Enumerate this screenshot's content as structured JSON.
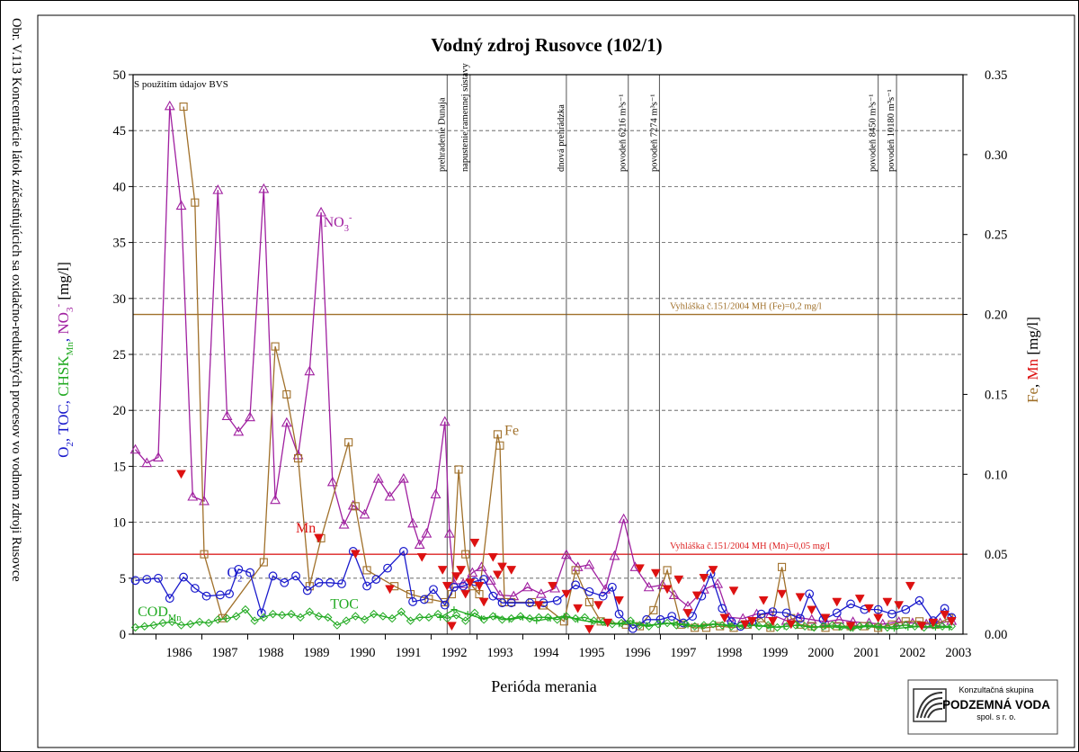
{
  "figure": {
    "caption": "Obr. V.113 Koncentrácie látok zúčastňujúcich sa oxidačno-redukčných procesov vo vodnom zdroji Rusovce",
    "source_note": "S použitím údajov BVS"
  },
  "logo": {
    "line1": "Konzultačná skupina",
    "line2": "PODZEMNÁ VODA",
    "line3": "spol. s r. o."
  },
  "chart_data": {
    "type": "line",
    "title": "Vodný zdroj Rusovce (102/1)",
    "xlabel": "Perióda merania",
    "ylabel_left_parts": [
      {
        "text": "O",
        "color": "#1a1acc"
      },
      {
        "text": "2",
        "color": "#1a1acc",
        "sub": true
      },
      {
        "text": ", TOC, ",
        "color": "#1a1acc"
      },
      {
        "text": "CHSK",
        "color": "#22aa22"
      },
      {
        "text": "Mn",
        "color": "#22aa22",
        "sub": true
      },
      {
        "text": ", ",
        "color": "#1a1acc"
      },
      {
        "text": "NO",
        "color": "#a020a0"
      },
      {
        "text": "3",
        "color": "#a020a0",
        "sub": true
      },
      {
        "text": "-",
        "color": "#a020a0",
        "sup": true
      },
      {
        "text": " [mg/l]",
        "color": "#000000"
      }
    ],
    "ylabel_right_parts": [
      {
        "text": "Fe",
        "color": "#a0702a"
      },
      {
        "text": ", ",
        "color": "#000000"
      },
      {
        "text": "Mn",
        "color": "#dd1111"
      },
      {
        "text": " [mg/l]",
        "color": "#000000"
      }
    ],
    "xlim": [
      1985.5,
      2003.6
    ],
    "ylim_left": [
      0,
      50
    ],
    "ylim_right": [
      0,
      0.35
    ],
    "x_ticks": [
      "1986",
      "1987",
      "1988",
      "1989",
      "1990",
      "1991",
      "1992",
      "1993",
      "1994",
      "1995",
      "1996",
      "1997",
      "1998",
      "1999",
      "2000",
      "2001",
      "2002",
      "2003"
    ],
    "y_left_ticks": [
      "0",
      "5",
      "10",
      "15",
      "20",
      "25",
      "30",
      "35",
      "40",
      "45",
      "50"
    ],
    "y_right_ticks": [
      "0.00",
      "0.05",
      "0.10",
      "0.15",
      "0.20",
      "0.25",
      "0.30",
      "0.35"
    ],
    "grid": true,
    "limit_lines": [
      {
        "label": "Vyhláška č.151/2004 MH (Fe)=0,2 mg/l",
        "axis": "right",
        "value": 0.2,
        "color": "#a0702a"
      },
      {
        "label": "Vyhláška č.151/2004 MH (Mn)=0,05 mg/l",
        "axis": "right",
        "value": 0.05,
        "color": "#dd2222"
      }
    ],
    "events": [
      {
        "x": 1992.35,
        "label": "prehradenie Dunaja"
      },
      {
        "x": 1992.85,
        "label": "napustenie ramennej sústavy"
      },
      {
        "x": 1994.95,
        "label": "dnová prehrádzka"
      },
      {
        "x": 1996.3,
        "label": "povodeň 6216 m³s⁻¹"
      },
      {
        "x": 1996.98,
        "label": "povodeň 7274 m³s⁻¹"
      },
      {
        "x": 2001.75,
        "label": "povodeň 8450 m³s⁻¹"
      },
      {
        "x": 2002.15,
        "label": "povodeň 10180 m³s⁻¹"
      }
    ],
    "series_labels": [
      {
        "text": "NO",
        "sub": "3",
        "sup": "-",
        "x": 1989.65,
        "y": 36.4,
        "color": "#a020a0"
      },
      {
        "text": "Fe",
        "x": 1993.6,
        "y": 17.8,
        "color": "#a0702a"
      },
      {
        "text": "Mn",
        "x": 1989.05,
        "y": 9.1,
        "color": "#dd1111"
      },
      {
        "text": "O",
        "sub": "2",
        "x": 1987.55,
        "y": 5.1,
        "color": "#1a1acc"
      },
      {
        "text": "TOC",
        "x": 1989.8,
        "y": 2.3,
        "color": "#22aa22"
      },
      {
        "text": "COD",
        "sub": "Mn",
        "x": 1985.6,
        "y": 1.6,
        "color": "#22aa22"
      }
    ],
    "series": [
      {
        "name": "NO3-",
        "axis": "left",
        "color": "#a020a0",
        "marker": "triangle",
        "x": [
          1985.55,
          1985.8,
          1986.05,
          1986.3,
          1986.55,
          1986.8,
          1987.05,
          1987.35,
          1987.55,
          1987.8,
          1988.05,
          1988.35,
          1988.6,
          1988.85,
          1989.1,
          1989.35,
          1989.6,
          1989.85,
          1990.1,
          1990.3,
          1990.55,
          1990.85,
          1991.1,
          1991.4,
          1991.6,
          1991.75,
          1991.9,
          1992.1,
          1992.3,
          1992.4,
          1992.5,
          1992.7,
          1992.9,
          1993.1,
          1993.3,
          1993.5,
          1993.8,
          1994.1,
          1994.4,
          1994.7,
          1994.95,
          1995.2,
          1995.45,
          1995.8,
          1996.0,
          1996.2,
          1996.45,
          1996.75,
          1997.05,
          1997.3,
          1997.6,
          1997.95,
          1998.25,
          1998.5,
          1998.8,
          1999.1,
          1999.4,
          1999.75,
          2000.0,
          2000.3,
          2000.6,
          2000.9,
          2001.2,
          2001.55,
          2001.85,
          2002.2,
          2002.5,
          2002.8,
          2003.1,
          2003.35
        ],
        "values": [
          16.5,
          15.3,
          15.8,
          47.2,
          38.3,
          12.3,
          11.9,
          39.7,
          19.5,
          18.1,
          19.4,
          39.8,
          12.0,
          18.9,
          16.0,
          23.5,
          37.7,
          13.6,
          9.8,
          11.5,
          10.7,
          13.9,
          12.3,
          13.9,
          9.9,
          8.0,
          9.0,
          12.5,
          19.0,
          9.0,
          4.5,
          4.5,
          5.5,
          6.0,
          4.8,
          3.5,
          3.4,
          4.2,
          3.6,
          4.1,
          7.1,
          6.0,
          6.2,
          4.0,
          7.0,
          10.3,
          6.0,
          4.2,
          4.4,
          3.5,
          2.5,
          4.0,
          4.5,
          1.5,
          1.4,
          1.8,
          1.8,
          1.2,
          1.5,
          1.3,
          1.1,
          1.3,
          1.1,
          1.0,
          0.9,
          1.1,
          1.0,
          0.9,
          1.0,
          1.2
        ]
      },
      {
        "name": "Fe",
        "axis": "right",
        "color": "#a0702a",
        "marker": "square",
        "x": [
          1986.6,
          1986.85,
          1987.05,
          1987.45,
          1988.35,
          1988.6,
          1988.85,
          1989.1,
          1989.35,
          1989.6,
          1990.2,
          1990.35,
          1990.6,
          1991.2,
          1991.55,
          1991.95,
          1992.3,
          1992.45,
          1992.6,
          1992.75,
          1992.9,
          1993.05,
          1993.45,
          1993.5,
          1993.6,
          1993.75,
          1994.2,
          1994.45,
          1994.9,
          1995.15,
          1995.45,
          1995.7,
          1996.25,
          1996.55,
          1996.85,
          1997.15,
          1997.45,
          1997.75,
          1998.0,
          1998.3,
          1998.6,
          1998.9,
          1999.2,
          1999.4,
          1999.65,
          1999.85,
          2000.05,
          2000.3,
          2000.6,
          2000.85,
          2001.15,
          2001.45,
          2001.75,
          2002.05,
          2002.35,
          2002.65,
          2003.0,
          2003.3
        ],
        "values": [
          0.33,
          0.27,
          0.05,
          0.01,
          0.045,
          0.18,
          0.15,
          0.11,
          0.03,
          0.06,
          0.12,
          0.08,
          0.04,
          0.03,
          0.025,
          0.022,
          0.02,
          0.025,
          0.103,
          0.05,
          0.03,
          0.025,
          0.125,
          0.118,
          0.02,
          0.02,
          0.02,
          0.018,
          0.008,
          0.04,
          0.02,
          0.008,
          0.006,
          0.005,
          0.015,
          0.04,
          0.006,
          0.004,
          0.004,
          0.005,
          0.004,
          0.006,
          0.01,
          0.004,
          0.042,
          0.01,
          0.006,
          0.005,
          0.004,
          0.005,
          0.005,
          0.005,
          0.004,
          0.006,
          0.008,
          0.008,
          0.006,
          0.01
        ]
      },
      {
        "name": "O2",
        "axis": "left",
        "color": "#1a1acc",
        "marker": "circle",
        "x": [
          1985.55,
          1985.8,
          1986.05,
          1986.3,
          1986.6,
          1986.85,
          1987.1,
          1987.4,
          1987.6,
          1987.8,
          1988.05,
          1988.3,
          1988.55,
          1988.8,
          1989.05,
          1989.3,
          1989.55,
          1989.8,
          1990.05,
          1990.3,
          1990.6,
          1990.8,
          1991.05,
          1991.4,
          1991.6,
          1991.85,
          1992.05,
          1992.3,
          1992.5,
          1992.7,
          1992.95,
          1993.15,
          1993.35,
          1993.55,
          1993.75,
          1994.15,
          1994.45,
          1994.75,
          1995.15,
          1995.45,
          1995.75,
          1995.95,
          1996.1,
          1996.4,
          1996.7,
          1997.0,
          1997.25,
          1997.5,
          1997.7,
          1997.9,
          1998.1,
          1998.35,
          1998.55,
          1998.75,
          1999.0,
          1999.2,
          1999.45,
          1999.75,
          2000.05,
          2000.25,
          2000.55,
          2000.85,
          2001.15,
          2001.45,
          2001.75,
          2002.05,
          2002.35,
          2002.65,
          2002.95,
          2003.2,
          2003.35
        ],
        "values": [
          4.8,
          4.9,
          5.0,
          3.2,
          5.1,
          4.1,
          3.4,
          3.5,
          3.6,
          5.8,
          5.5,
          1.9,
          5.2,
          4.6,
          5.2,
          3.9,
          4.6,
          4.6,
          4.5,
          7.4,
          4.3,
          4.9,
          5.9,
          7.4,
          2.9,
          3.1,
          4.0,
          2.6,
          4.2,
          4.3,
          4.7,
          4.9,
          3.4,
          2.8,
          2.8,
          2.8,
          2.8,
          3.0,
          4.4,
          3.8,
          3.4,
          4.2,
          1.8,
          0.5,
          1.3,
          1.3,
          1.6,
          1.0,
          1.6,
          3.4,
          5.4,
          2.3,
          1.1,
          0.7,
          1.1,
          1.8,
          2.0,
          1.9,
          1.4,
          3.6,
          1.3,
          1.9,
          2.7,
          2.2,
          2.2,
          1.8,
          2.2,
          3.0,
          1.2,
          2.3,
          1.5
        ]
      },
      {
        "name": "TOC",
        "axis": "left",
        "color": "#22aa22",
        "marker": "diamond",
        "x": [
          1985.55,
          1985.75,
          1985.95,
          1986.15,
          1986.35,
          1986.55,
          1986.75,
          1986.95,
          1987.15,
          1987.35,
          1987.55,
          1987.75,
          1987.95,
          1988.15,
          1988.35,
          1988.55,
          1988.75,
          1988.95,
          1989.15,
          1989.35,
          1989.55,
          1989.75,
          1989.95,
          1990.15,
          1990.35,
          1990.55,
          1990.75,
          1990.95,
          1991.15,
          1991.35,
          1991.55,
          1991.75,
          1991.95,
          1992.15,
          1992.35,
          1992.55,
          1992.75,
          1992.95,
          1993.15,
          1993.35,
          1993.55,
          1993.75,
          1993.95,
          1994.15,
          1994.35,
          1994.55,
          1994.75,
          1994.95,
          1995.15,
          1995.35,
          1995.55,
          1995.75,
          1995.95,
          1996.15,
          1996.35,
          1996.55,
          1996.75,
          1996.95,
          1997.15,
          1997.35,
          1997.55,
          1997.75,
          1997.95,
          1998.15,
          1998.35,
          1998.55,
          1998.75,
          1998.95,
          1999.15,
          1999.35,
          1999.55,
          1999.75,
          1999.95,
          2000.15,
          2000.35,
          2000.55,
          2000.75,
          2000.95,
          2001.15,
          2001.35,
          2001.55,
          2001.75,
          2001.95,
          2002.15,
          2002.35,
          2002.55,
          2002.75,
          2002.95,
          2003.15,
          2003.35
        ],
        "values": [
          0.6,
          0.7,
          0.8,
          1.0,
          1.1,
          0.8,
          0.9,
          1.1,
          1.0,
          1.3,
          1.4,
          1.6,
          2.2,
          1.2,
          1.5,
          1.8,
          1.7,
          1.8,
          1.5,
          2.0,
          1.6,
          1.5,
          0.8,
          1.2,
          1.6,
          1.3,
          1.8,
          1.6,
          1.4,
          2.0,
          1.2,
          1.5,
          1.5,
          1.8,
          1.4,
          1.7,
          1.2,
          1.9,
          1.3,
          1.6,
          1.3,
          1.4,
          1.6,
          1.4,
          1.5,
          1.5,
          1.3,
          1.6,
          1.4,
          1.5,
          1.2,
          1.1,
          0.9,
          1.0,
          1.2,
          0.8,
          0.7,
          0.9,
          1.0,
          0.8,
          0.9,
          0.7,
          0.8,
          0.9,
          0.8,
          0.7,
          0.8,
          0.9,
          0.7,
          0.8,
          0.6,
          0.7,
          0.8,
          0.7,
          0.6,
          0.7,
          0.8,
          0.7,
          0.6,
          0.7,
          0.8,
          0.7,
          0.6,
          0.7,
          0.8,
          0.7,
          0.6,
          0.8,
          0.7,
          0.7
        ]
      },
      {
        "name": "CODMn",
        "axis": "left",
        "color": "#22aa22",
        "marker": "plus",
        "x": [
          1992.2,
          1992.5,
          1992.8,
          1993.1,
          1993.4,
          1993.7,
          1994.0,
          1994.3,
          1994.6,
          1994.9,
          1995.2,
          1995.5,
          1995.8,
          1996.1,
          1996.4,
          1996.7,
          1997.0,
          1997.3,
          1997.6,
          1997.9,
          1998.2,
          1998.5,
          1998.8,
          1999.1,
          1999.4,
          1999.7,
          2000.0,
          2000.3,
          2000.6,
          2000.9,
          2001.2,
          2001.5,
          2001.8,
          2002.1,
          2002.4,
          2002.7,
          2003.0,
          2003.3
        ],
        "values": [
          1.5,
          2.2,
          1.8,
          1.4,
          1.6,
          1.3,
          1.5,
          1.2,
          1.4,
          1.6,
          1.3,
          1.1,
          1.0,
          0.9,
          1.0,
          0.8,
          0.9,
          1.0,
          0.8,
          0.7,
          0.9,
          0.8,
          0.7,
          0.8,
          0.6,
          0.7,
          0.8,
          0.6,
          0.7,
          0.6,
          0.5,
          0.7,
          0.6,
          0.5,
          0.6,
          0.7,
          0.6,
          0.6
        ]
      },
      {
        "name": "Mn",
        "axis": "right",
        "color": "#dd1111",
        "marker": "triangle-down",
        "x": [
          1986.55,
          1989.55,
          1990.35,
          1991.1,
          1991.8,
          1992.25,
          1992.35,
          1992.45,
          1992.55,
          1992.65,
          1992.75,
          1992.85,
          1992.95,
          1993.05,
          1993.15,
          1993.35,
          1993.45,
          1993.55,
          1993.75,
          1994.35,
          1994.65,
          1994.95,
          1995.2,
          1995.45,
          1995.65,
          1995.85,
          1996.1,
          1996.55,
          1996.9,
          1997.15,
          1997.4,
          1997.6,
          1997.8,
          1997.95,
          1998.15,
          1998.4,
          1998.6,
          1998.85,
          1999.0,
          1999.25,
          1999.45,
          1999.65,
          1999.85,
          2000.05,
          2000.3,
          2000.6,
          2000.85,
          2001.15,
          2001.35,
          2001.55,
          2001.75,
          2001.95,
          2002.2,
          2002.45,
          2002.7,
          2002.95,
          2003.2,
          2003.35
        ],
        "values": [
          0.1,
          0.06,
          0.05,
          0.028,
          0.048,
          0.04,
          0.03,
          0.005,
          0.036,
          0.04,
          0.025,
          0.032,
          0.057,
          0.03,
          0.02,
          0.048,
          0.037,
          0.042,
          0.04,
          0.018,
          0.03,
          0.025,
          0.016,
          0.003,
          0.018,
          0.007,
          0.021,
          0.041,
          0.038,
          0.028,
          0.034,
          0.013,
          0.024,
          0.035,
          0.04,
          0.01,
          0.027,
          0.006,
          0.008,
          0.021,
          0.008,
          0.025,
          0.006,
          0.023,
          0.015,
          0.01,
          0.02,
          0.005,
          0.022,
          0.016,
          0.01,
          0.02,
          0.018,
          0.03,
          0.005,
          0.007,
          0.012,
          0.008
        ]
      }
    ]
  }
}
